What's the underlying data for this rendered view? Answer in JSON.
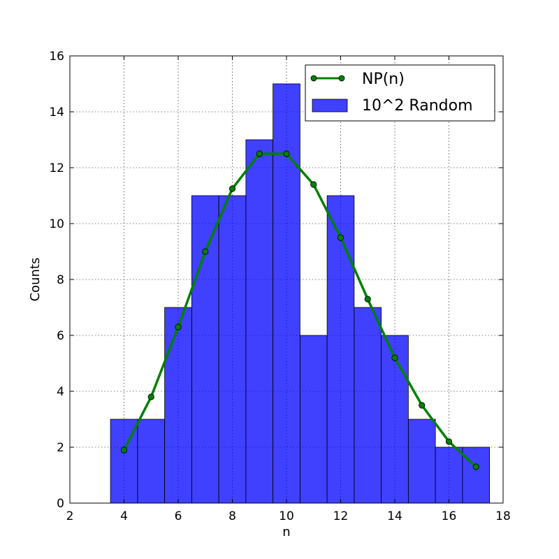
{
  "chart_data": {
    "type": "bar",
    "xlabel": "n",
    "ylabel": "Counts",
    "xlim": [
      2,
      18
    ],
    "ylim": [
      0,
      16
    ],
    "xticks": [
      "2",
      "4",
      "6",
      "8",
      "10",
      "12",
      "14",
      "16",
      "18"
    ],
    "yticks": [
      "0",
      "2",
      "4",
      "6",
      "8",
      "10",
      "12",
      "14",
      "16"
    ],
    "grid": true,
    "legend_position": "top-right",
    "histogram": {
      "name": "10^2 Random",
      "color": "#0000ff",
      "bins": [
        {
          "n": 4,
          "count": 3
        },
        {
          "n": 5,
          "count": 3
        },
        {
          "n": 6,
          "count": 7
        },
        {
          "n": 7,
          "count": 11
        },
        {
          "n": 8,
          "count": 11
        },
        {
          "n": 9,
          "count": 13
        },
        {
          "n": 10,
          "count": 15
        },
        {
          "n": 11,
          "count": 6
        },
        {
          "n": 12,
          "count": 11
        },
        {
          "n": 13,
          "count": 7
        },
        {
          "n": 14,
          "count": 6
        },
        {
          "n": 15,
          "count": 3
        },
        {
          "n": 16,
          "count": 2
        },
        {
          "n": 17,
          "count": 2
        }
      ]
    },
    "line": {
      "name": "NP(n)",
      "color": "#008000",
      "points": [
        {
          "n": 4,
          "value": 1.9
        },
        {
          "n": 5,
          "value": 3.8
        },
        {
          "n": 6,
          "value": 6.3
        },
        {
          "n": 7,
          "value": 9.0
        },
        {
          "n": 8,
          "value": 11.25
        },
        {
          "n": 9,
          "value": 12.5
        },
        {
          "n": 10,
          "value": 12.5
        },
        {
          "n": 11,
          "value": 11.4
        },
        {
          "n": 12,
          "value": 9.5
        },
        {
          "n": 13,
          "value": 7.3
        },
        {
          "n": 14,
          "value": 5.2
        },
        {
          "n": 15,
          "value": 3.5
        },
        {
          "n": 16,
          "value": 2.2
        },
        {
          "n": 17,
          "value": 1.3
        }
      ]
    }
  }
}
